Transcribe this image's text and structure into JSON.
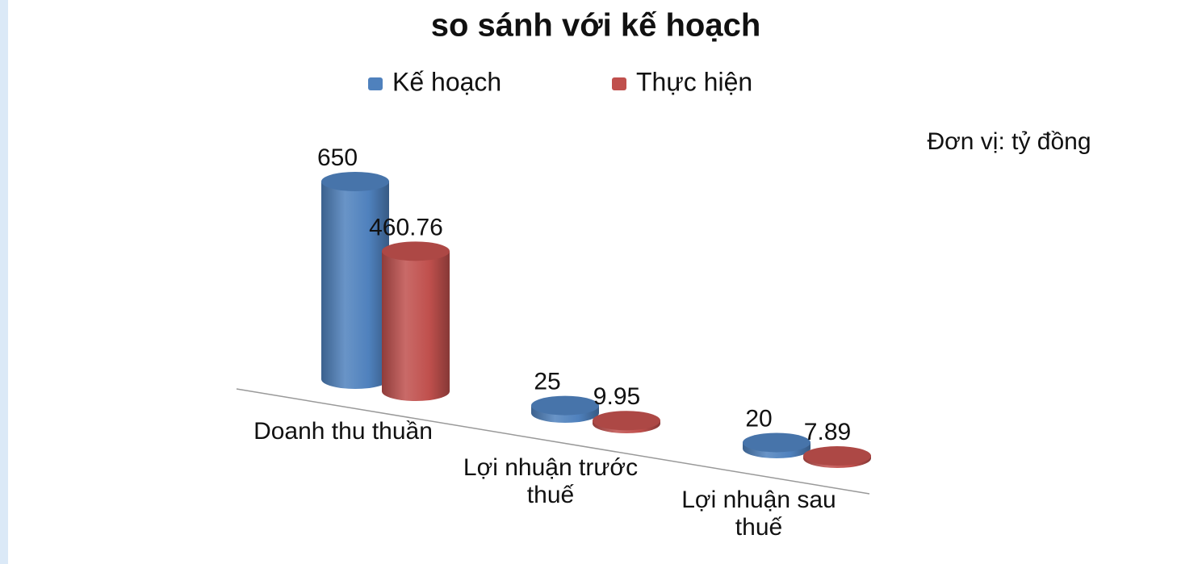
{
  "chart_data": {
    "type": "bar3d",
    "title": "so sánh với kế hoạch",
    "annotation": "Đơn vị: tỷ đồng",
    "categories": [
      "Doanh thu thuần",
      "Lợi nhuận trước thuế",
      "Lợi nhuận sau thuế"
    ],
    "series": [
      {
        "name": "Kế hoạch",
        "color": "#4f81bd",
        "values": [
          650,
          25,
          20
        ]
      },
      {
        "name": "Thực hiện",
        "color": "#c0504d",
        "values": [
          460.76,
          9.95,
          7.89
        ]
      }
    ],
    "legend": "top"
  }
}
